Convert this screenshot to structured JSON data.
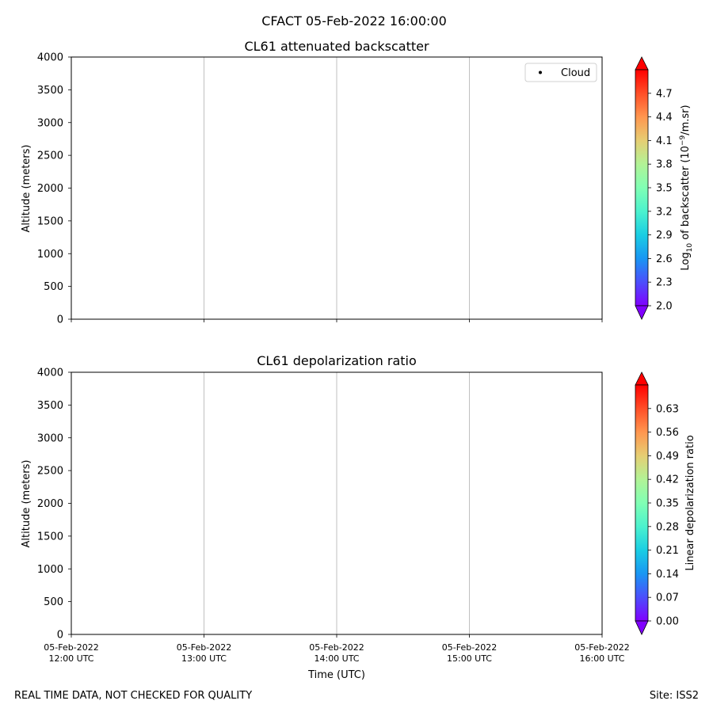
{
  "figure": {
    "suptitle": "CFACT 05-Feb-2022 16:00:00",
    "footer_left": "REAL TIME DATA, NOT CHECKED FOR QUALITY",
    "footer_right": "Site: ISS2"
  },
  "chart_data": [
    {
      "type": "heatmap",
      "title": "CL61 attenuated backscatter",
      "ylabel": "Altitude (meters)",
      "xlabel": "",
      "ylim": [
        0,
        4000
      ],
      "yticks": [
        "0",
        "500",
        "1000",
        "1500",
        "2000",
        "2500",
        "3000",
        "3500",
        "4000"
      ],
      "x_range": [
        "05-Feb-2022 12:00 UTC",
        "05-Feb-2022 16:00 UTC"
      ],
      "grid": "x-major",
      "values": [],
      "legend": {
        "entries": [
          "Cloud"
        ],
        "placement": "top-right",
        "marker": "dot"
      },
      "colorbar": {
        "label_main": "Log",
        "label_sub": "10",
        "label_mid": " of backscatter (10",
        "label_sup": "−9",
        "label_end": "/m.sr)",
        "range": [
          2.0,
          5.0
        ],
        "ticks": [
          "2.0",
          "2.3",
          "2.6",
          "2.9",
          "3.2",
          "3.5",
          "3.8",
          "4.1",
          "4.4",
          "4.7"
        ],
        "colormap": "rainbow",
        "extend": "both"
      }
    },
    {
      "type": "heatmap",
      "title": "CL61 depolarization ratio",
      "ylabel": "Altitude (meters)",
      "xlabel": "Time (UTC)",
      "ylim": [
        0,
        4000
      ],
      "yticks": [
        "0",
        "500",
        "1000",
        "1500",
        "2000",
        "2500",
        "3000",
        "3500",
        "4000"
      ],
      "xticks": [
        {
          "date": "05-Feb-2022",
          "time": "12:00 UTC"
        },
        {
          "date": "05-Feb-2022",
          "time": "13:00 UTC"
        },
        {
          "date": "05-Feb-2022",
          "time": "14:00 UTC"
        },
        {
          "date": "05-Feb-2022",
          "time": "15:00 UTC"
        },
        {
          "date": "05-Feb-2022",
          "time": "16:00 UTC"
        }
      ],
      "grid": "x-major",
      "values": [],
      "colorbar": {
        "label": "Linear depolarization ratio",
        "range": [
          0.0,
          0.7
        ],
        "ticks": [
          "0.00",
          "0.07",
          "0.14",
          "0.21",
          "0.28",
          "0.35",
          "0.42",
          "0.49",
          "0.56",
          "0.63"
        ],
        "colormap": "rainbow",
        "extend": "both"
      }
    }
  ]
}
